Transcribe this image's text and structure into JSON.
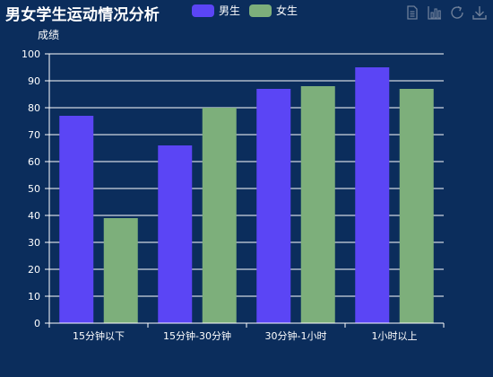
{
  "chart_title": "男女学生运动情况分析",
  "legend": [
    {
      "label": "男生",
      "color": "#5b45f5"
    },
    {
      "label": "女生",
      "color": "#7daf7b"
    }
  ],
  "toolbox": [
    {
      "name": "data-view-icon"
    },
    {
      "name": "bar-chart-icon"
    },
    {
      "name": "restore-icon"
    },
    {
      "name": "save-image-icon"
    }
  ],
  "chart_data": {
    "type": "bar",
    "title": "男女学生运动情况分析",
    "xlabel": "",
    "ylabel": "成绩",
    "categories": [
      "15分钟以下",
      "15分钟-30分钟",
      "30分钟-1小时",
      "1小时以上"
    ],
    "series": [
      {
        "name": "男生",
        "values": [
          77,
          66,
          87,
          95
        ],
        "color": "#5b45f5"
      },
      {
        "name": "女生",
        "values": [
          39,
          80,
          88,
          87
        ],
        "color": "#7daf7b"
      }
    ],
    "ylim": [
      0,
      100
    ],
    "yticks": [
      0,
      10,
      20,
      30,
      40,
      50,
      60,
      70,
      80,
      90,
      100
    ],
    "grid": true,
    "legend_position": "top"
  }
}
